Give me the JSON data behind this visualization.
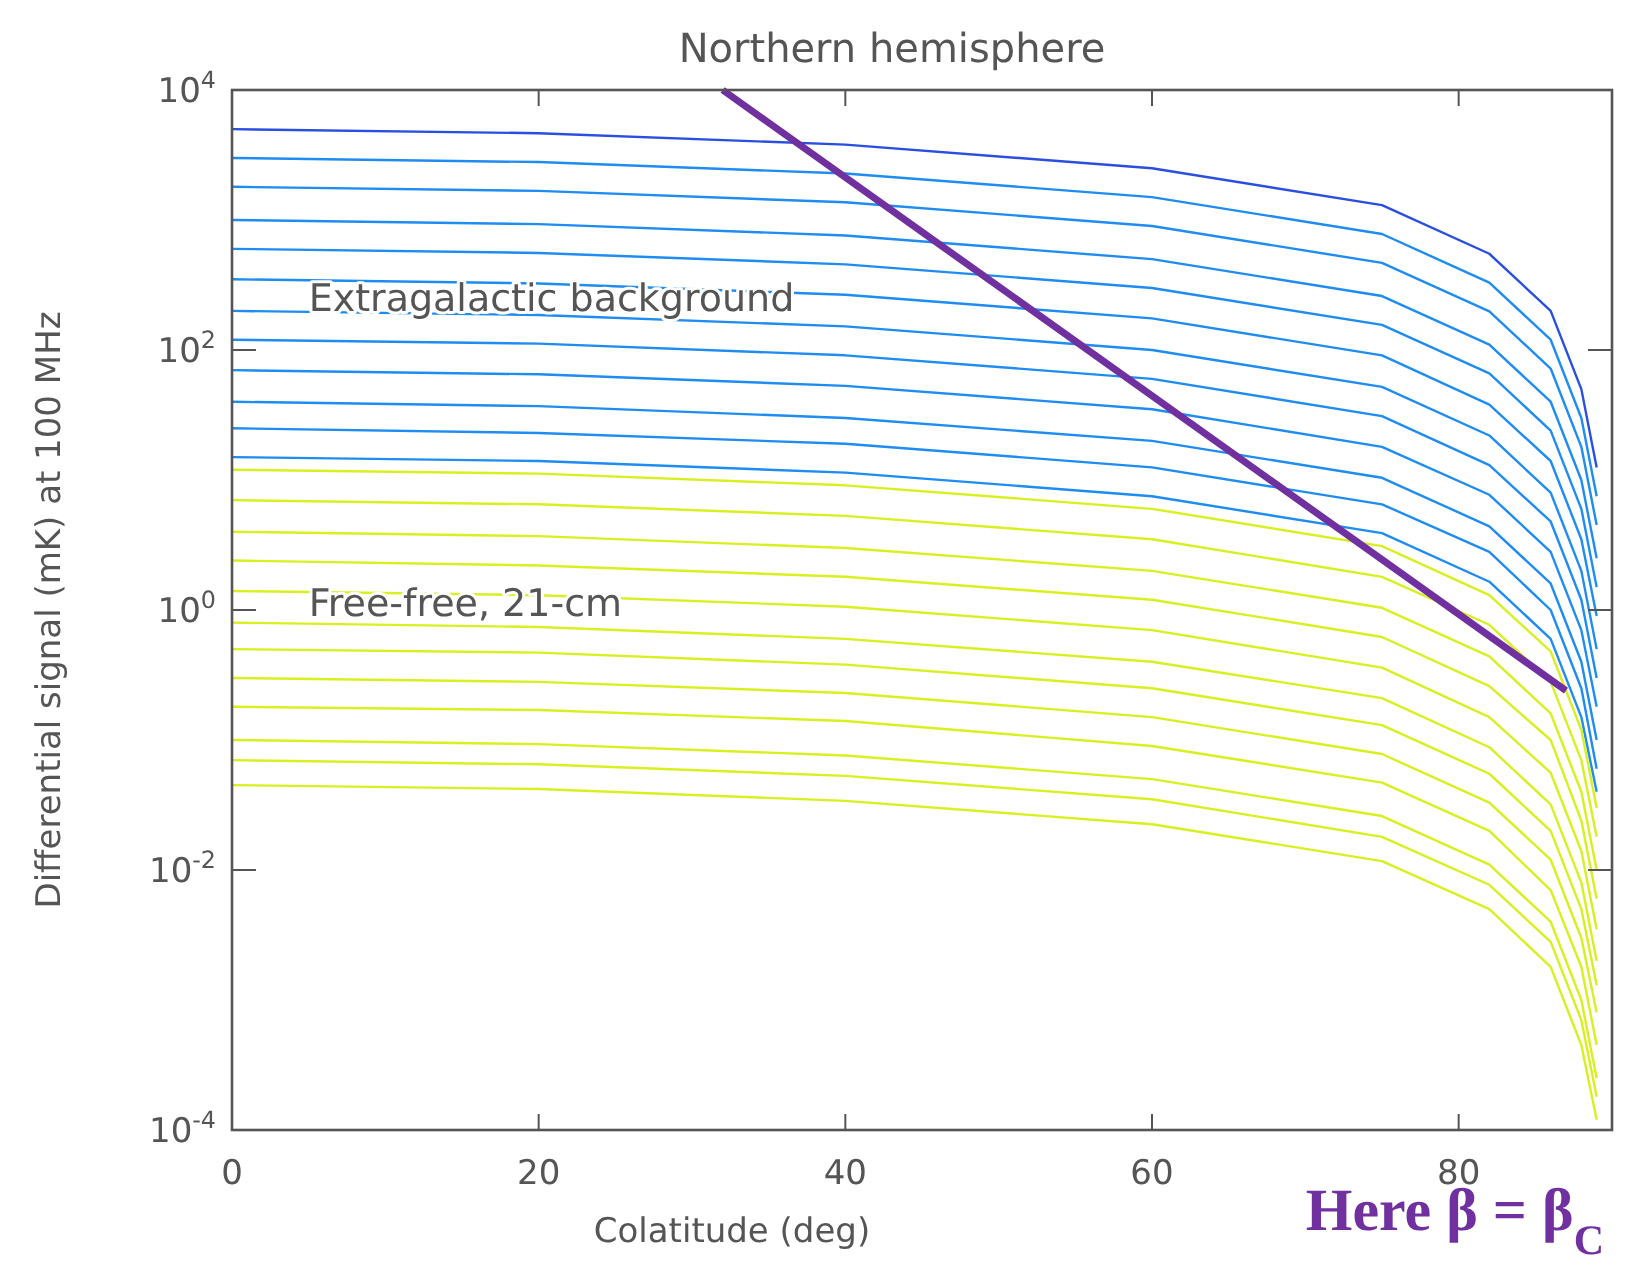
{
  "chart_data": {
    "type": "line",
    "title": "Northern hemisphere",
    "xlabel": "Colatitude (deg)",
    "ylabel": "Differential signal (mK) at 100 MHz",
    "log": "y",
    "grid": false,
    "marker": "none",
    "line_style": "solid",
    "xlim": [
      0,
      90
    ],
    "xticks": [
      0,
      20,
      40,
      60,
      80
    ],
    "ylim": [
      0.0001,
      10000
    ],
    "yticks": [
      {
        "value": 10000,
        "label": "10$^{4}$"
      },
      {
        "value": 100,
        "label": "10$^{2}$"
      },
      {
        "value": 1,
        "label": "10$^{0}$"
      },
      {
        "value": 0.01,
        "label": "10$^{-2}$"
      },
      {
        "value": 0.0001,
        "label": "10$^{-4}$"
      }
    ],
    "x": [
      0,
      20,
      40,
      60,
      75,
      82,
      86,
      88,
      89
    ],
    "annotations": [
      {
        "text": "Extragalactic background",
        "x": 5,
        "y": 200
      },
      {
        "text": "Free-free, 21-cm",
        "x": 5,
        "y": 0.9
      },
      "Here β = β$_{C}$"
    ],
    "series": [
      {
        "color": "#2a4fe0",
        "values": [
          5000,
          4650,
          3800,
          2500,
          1300,
          550,
          200,
          50,
          12.5
        ]
      },
      {
        "color": "#1e8cf0",
        "values": [
          3000,
          2790,
          2280,
          1500,
          780,
          330,
          120,
          30,
          7.5
        ]
      },
      {
        "color": "#1e8cf0",
        "values": [
          1800,
          1674,
          1368,
          900,
          468,
          198,
          72,
          18,
          4.5
        ]
      },
      {
        "color": "#1e8cf0",
        "values": [
          1000,
          930,
          760,
          500,
          260,
          110,
          40,
          10,
          2.5
        ]
      },
      {
        "color": "#1e8cf0",
        "values": [
          600,
          558,
          456,
          300,
          156,
          66,
          24,
          6,
          1.5
        ]
      },
      {
        "color": "#1e8cf0",
        "values": [
          350,
          325,
          266,
          175,
          91,
          38,
          14,
          3.5,
          0.9
        ]
      },
      {
        "color": "#1e8cf0",
        "values": [
          200,
          186,
          152,
          100,
          52,
          22,
          8,
          2,
          0.5
        ]
      },
      {
        "color": "#1e8cf0",
        "values": [
          120,
          112,
          91,
          60,
          31,
          13,
          4.8,
          1.2,
          0.3
        ]
      },
      {
        "color": "#1e8cf0",
        "values": [
          70,
          65,
          53,
          35,
          18,
          7.7,
          2.8,
          0.7,
          0.18
        ]
      },
      {
        "color": "#1e8cf0",
        "values": [
          40,
          37,
          30,
          20,
          10.4,
          4.4,
          1.6,
          0.4,
          0.1
        ]
      },
      {
        "color": "#1e8cf0",
        "values": [
          25,
          23,
          19,
          12.5,
          6.5,
          2.8,
          1,
          0.25,
          0.06
        ]
      },
      {
        "color": "#1e8cf0",
        "values": [
          15,
          14,
          11.4,
          7.5,
          3.9,
          1.65,
          0.6,
          0.15,
          0.04
        ]
      },
      {
        "color": "#d8f020",
        "values": [
          12,
          11.2,
          9.1,
          6,
          3.1,
          1.3,
          0.48,
          0.12,
          0.03
        ]
      },
      {
        "color": "#d8f020",
        "values": [
          7,
          6.5,
          5.3,
          3.5,
          1.8,
          0.77,
          0.28,
          0.07,
          0.018
        ]
      },
      {
        "color": "#d8f020",
        "values": [
          4,
          3.7,
          3,
          2,
          1.04,
          0.44,
          0.16,
          0.04,
          0.01
        ]
      },
      {
        "color": "#d8f020",
        "values": [
          2.4,
          2.2,
          1.8,
          1.2,
          0.62,
          0.26,
          0.1,
          0.024,
          0.006
        ]
      },
      {
        "color": "#d8f020",
        "values": [
          1.4,
          1.3,
          1.06,
          0.7,
          0.36,
          0.15,
          0.056,
          0.014,
          0.0035
        ]
      },
      {
        "color": "#d8f020",
        "values": [
          0.8,
          0.74,
          0.6,
          0.4,
          0.21,
          0.088,
          0.032,
          0.008,
          0.002
        ]
      },
      {
        "color": "#d8f020",
        "values": [
          0.5,
          0.47,
          0.38,
          0.25,
          0.13,
          0.055,
          0.02,
          0.005,
          0.0013
        ]
      },
      {
        "color": "#d8f020",
        "values": [
          0.3,
          0.28,
          0.23,
          0.15,
          0.078,
          0.033,
          0.012,
          0.003,
          0.0008
        ]
      },
      {
        "color": "#d8f020",
        "values": [
          0.18,
          0.17,
          0.14,
          0.09,
          0.047,
          0.02,
          0.007,
          0.0018,
          0.00045
        ]
      },
      {
        "color": "#d8f020",
        "values": [
          0.1,
          0.093,
          0.076,
          0.05,
          0.026,
          0.011,
          0.004,
          0.001,
          0.00025
        ]
      },
      {
        "color": "#d8f020",
        "values": [
          0.07,
          0.065,
          0.053,
          0.035,
          0.018,
          0.0077,
          0.0028,
          0.0007,
          0.00018
        ]
      },
      {
        "color": "#d8f020",
        "values": [
          0.045,
          0.042,
          0.034,
          0.0225,
          0.0117,
          0.005,
          0.0018,
          0.00045,
          0.00012
        ]
      },
      {
        "type": "line",
        "color": "#7030a0",
        "x": [
          32,
          87
        ],
        "values": [
          10000,
          0.24
        ]
      }
    ]
  }
}
